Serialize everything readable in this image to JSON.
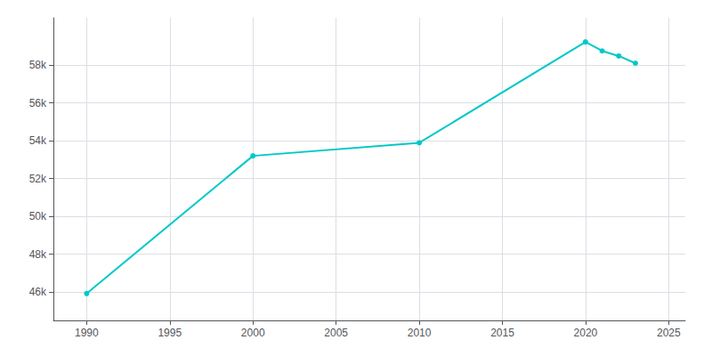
{
  "chart_data": {
    "type": "line",
    "x": [
      1990,
      2000,
      2010,
      2020,
      2021,
      2022,
      2023
    ],
    "values": [
      45920,
      53200,
      53891,
      59224,
      58748,
      58480,
      58100
    ],
    "color": "#00C8C8",
    "marker": "circle",
    "xlim": [
      1988,
      2026
    ],
    "xticks": [
      1990,
      1995,
      2000,
      2005,
      2010,
      2015,
      2020,
      2025
    ],
    "ylim": [
      44500,
      60500
    ],
    "yticks": [
      {
        "value": 46000,
        "label": "46k"
      },
      {
        "value": 48000,
        "label": "48k"
      },
      {
        "value": 50000,
        "label": "50k"
      },
      {
        "value": 52000,
        "label": "52k"
      },
      {
        "value": 54000,
        "label": "54k"
      },
      {
        "value": 56000,
        "label": "56k"
      },
      {
        "value": 58000,
        "label": "58k"
      }
    ],
    "grid": true
  }
}
